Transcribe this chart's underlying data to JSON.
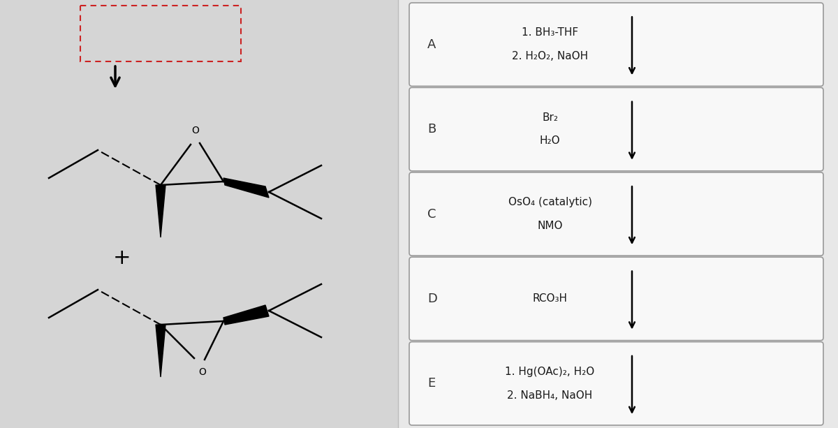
{
  "bg_left": "#d8d8d8",
  "bg_right": "#e8e8e8",
  "box_bg": "#f5f5f5",
  "box_edge": "#999999",
  "text_color": "#1a1a1a",
  "label_color": "#333333",
  "rows": [
    {
      "label": "A",
      "line1": "1. BH₃-THF",
      "line2": "2. H₂O₂, NaOH"
    },
    {
      "label": "B",
      "line1": "Br₂",
      "line2": "H₂O"
    },
    {
      "label": "C",
      "line1": "OsO₄ (catalytic)",
      "line2": "NMO"
    },
    {
      "label": "D",
      "line1": "RCO₃H",
      "line2": ""
    },
    {
      "label": "E",
      "line1": "1. Hg(OAc)₂, H₂O",
      "line2": "2. NaBH₄, NaOH"
    }
  ],
  "panel_split": 0.5,
  "arrow_color": "#111111"
}
